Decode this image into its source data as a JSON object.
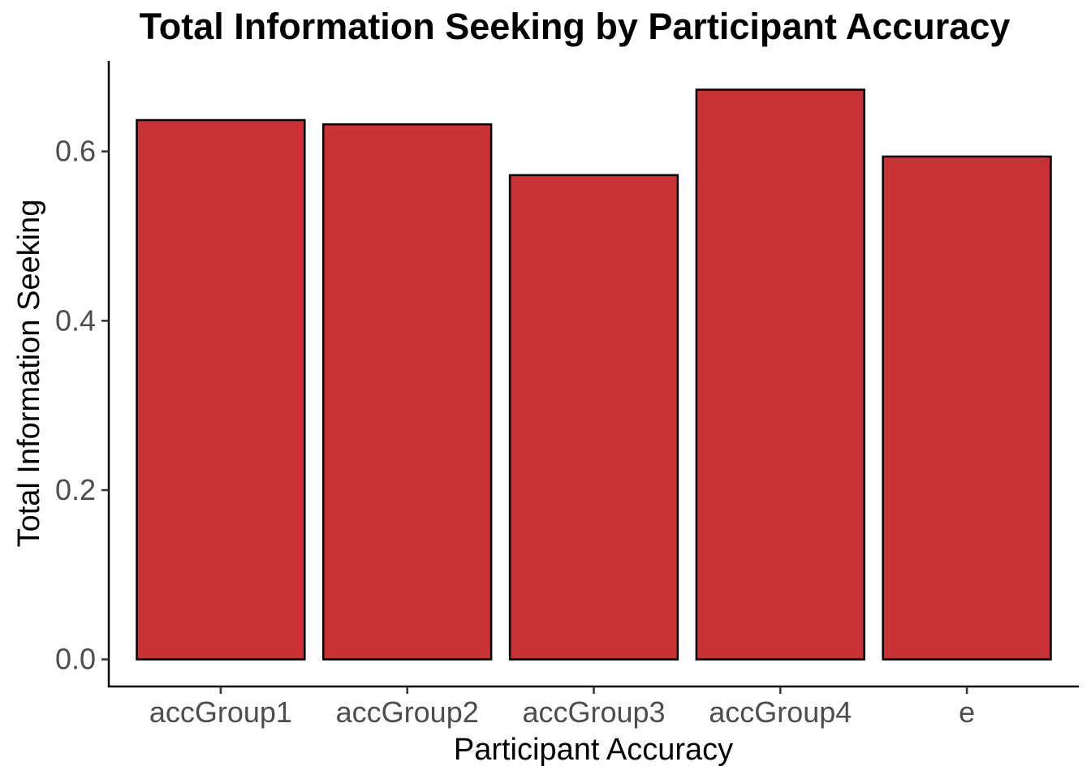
{
  "chart_data": {
    "type": "bar",
    "title": "Total Information Seeking by Participant Accuracy",
    "xlabel": "Participant Accuracy",
    "ylabel": "Total Information Seeking",
    "categories": [
      "accGroup1",
      "accGroup2",
      "accGroup3",
      "accGroup4",
      "e"
    ],
    "values": [
      0.637,
      0.632,
      0.572,
      0.673,
      0.594
    ],
    "ylim": [
      -0.032,
      0.707
    ],
    "yticks": [
      0.0,
      0.2,
      0.4,
      0.6
    ],
    "ytick_labels": [
      "0.0",
      "0.2",
      "0.4",
      "0.6"
    ],
    "grid": false,
    "legend": "none",
    "colors": {
      "bar_fill": "#c83235",
      "bar_outline": "#000000"
    }
  }
}
